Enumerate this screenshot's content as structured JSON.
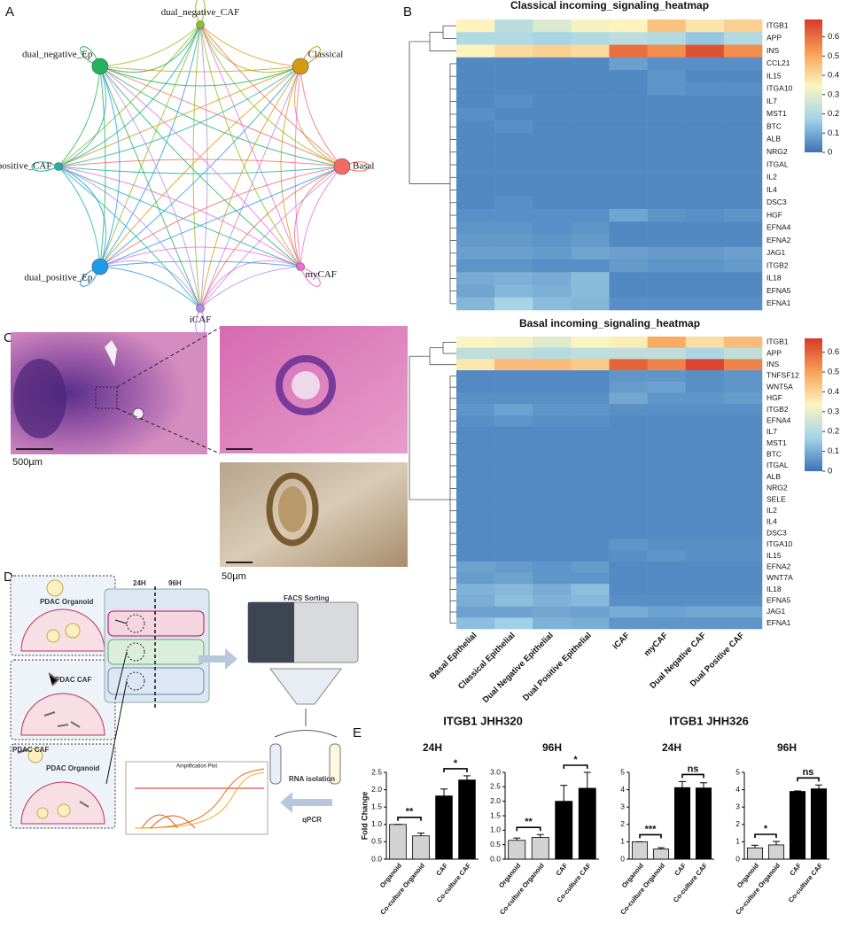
{
  "panel_labels": [
    "A",
    "B",
    "C",
    "D",
    "E"
  ],
  "network": {
    "nodes": [
      {
        "label": "dual_negative_CAF",
        "color": "#8fbf1f",
        "weight": 1
      },
      {
        "label": "Classical",
        "color": "#d49a12",
        "weight": 2
      },
      {
        "label": "Basal",
        "color": "#f26b63",
        "weight": 2
      },
      {
        "label": "myCAF",
        "color": "#f06be0",
        "weight": 1
      },
      {
        "label": "iCAF",
        "color": "#b98ae8",
        "weight": 1
      },
      {
        "label": "dual_positive_Ep",
        "color": "#1f9be8",
        "weight": 2
      },
      {
        "label": "dual_positive_CAF",
        "color": "#1fb0a8",
        "weight": 1
      },
      {
        "label": "dual_negative_Ep",
        "color": "#22b35e",
        "weight": 2
      }
    ]
  },
  "heatmap_columns": [
    "Basal Epithelial",
    "Classical Epithelial",
    "Dual Negative Epithelial",
    "Dual Positive Epithelial",
    "iCAF",
    "myCAF",
    "Dual Negative CAF",
    "Dual Positive CAF"
  ],
  "heatmaps": [
    {
      "title": "Classical incoming_signaling_heatmap",
      "rows": [
        "ITGB1",
        "APP",
        "INS",
        "CCL21",
        "IL15",
        "ITGA10",
        "IL7",
        "MST1",
        "BTC",
        "ALB",
        "NRG2",
        "ITGAL",
        "IL2",
        "IL4",
        "DSC3",
        "HGF",
        "EFNA4",
        "EFNA2",
        "JAG1",
        "ITGB2",
        "IL18",
        "EFNA5",
        "EFNA1"
      ],
      "values": [
        [
          0.35,
          0.22,
          0.28,
          0.33,
          0.35,
          0.45,
          0.38,
          0.42
        ],
        [
          0.2,
          0.2,
          0.18,
          0.2,
          0.22,
          0.2,
          0.15,
          0.2
        ],
        [
          0.35,
          0.4,
          0.42,
          0.4,
          0.6,
          0.55,
          0.65,
          0.55
        ],
        [
          0.04,
          0.04,
          0.04,
          0.04,
          0.08,
          0.05,
          0.05,
          0.05
        ],
        [
          0.04,
          0.04,
          0.04,
          0.04,
          0.04,
          0.06,
          0.04,
          0.04
        ],
        [
          0.04,
          0.04,
          0.04,
          0.04,
          0.04,
          0.06,
          0.05,
          0.05
        ],
        [
          0.04,
          0.05,
          0.04,
          0.04,
          0.04,
          0.04,
          0.04,
          0.04
        ],
        [
          0.05,
          0.04,
          0.04,
          0.04,
          0.04,
          0.04,
          0.04,
          0.04
        ],
        [
          0.04,
          0.05,
          0.04,
          0.04,
          0.04,
          0.04,
          0.04,
          0.04
        ],
        [
          0.04,
          0.04,
          0.04,
          0.04,
          0.04,
          0.04,
          0.04,
          0.04
        ],
        [
          0.04,
          0.04,
          0.04,
          0.04,
          0.04,
          0.04,
          0.04,
          0.04
        ],
        [
          0.04,
          0.04,
          0.04,
          0.04,
          0.04,
          0.04,
          0.04,
          0.04
        ],
        [
          0.04,
          0.04,
          0.04,
          0.04,
          0.04,
          0.04,
          0.04,
          0.04
        ],
        [
          0.04,
          0.04,
          0.04,
          0.04,
          0.04,
          0.04,
          0.04,
          0.04
        ],
        [
          0.04,
          0.05,
          0.04,
          0.04,
          0.04,
          0.04,
          0.04,
          0.04
        ],
        [
          0.05,
          0.05,
          0.05,
          0.05,
          0.09,
          0.06,
          0.05,
          0.06
        ],
        [
          0.06,
          0.06,
          0.05,
          0.06,
          0.04,
          0.04,
          0.04,
          0.04
        ],
        [
          0.07,
          0.07,
          0.06,
          0.07,
          0.04,
          0.04,
          0.04,
          0.04
        ],
        [
          0.08,
          0.08,
          0.07,
          0.09,
          0.08,
          0.07,
          0.07,
          0.08
        ],
        [
          0.06,
          0.06,
          0.05,
          0.05,
          0.07,
          0.06,
          0.06,
          0.07
        ],
        [
          0.1,
          0.11,
          0.1,
          0.13,
          0.04,
          0.04,
          0.04,
          0.04
        ],
        [
          0.09,
          0.12,
          0.11,
          0.13,
          0.04,
          0.04,
          0.04,
          0.04
        ],
        [
          0.12,
          0.18,
          0.13,
          0.12,
          0.05,
          0.05,
          0.05,
          0.05
        ]
      ],
      "lim": [
        0,
        0.69
      ],
      "ticks": [
        0,
        0.1,
        0.2,
        0.3,
        0.4,
        0.5,
        0.6
      ],
      "colormap": [
        "#3b72b8",
        "#a3d4e8",
        "#fcf5c0",
        "#f8a055",
        "#d63a2a"
      ]
    },
    {
      "title": "Basal incoming_signaling_heatmap",
      "rows": [
        "ITGB1",
        "APP",
        "INS",
        "TNFSF12",
        "WNT5A",
        "HGF",
        "ITGB2",
        "EFNA4",
        "IL7",
        "MST1",
        "BTC",
        "ITGAL",
        "ALB",
        "NRG2",
        "SELE",
        "IL2",
        "IL4",
        "DSC3",
        "ITGA10",
        "IL15",
        "EFNA2",
        "WNT7A",
        "IL18",
        "EFNA5",
        "JAG1",
        "EFNA1"
      ],
      "values": [
        [
          0.33,
          0.32,
          0.28,
          0.33,
          0.35,
          0.48,
          0.38,
          0.45
        ],
        [
          0.22,
          0.22,
          0.2,
          0.22,
          0.22,
          0.22,
          0.18,
          0.22
        ],
        [
          0.36,
          0.45,
          0.45,
          0.42,
          0.6,
          0.55,
          0.65,
          0.55
        ],
        [
          0.04,
          0.04,
          0.04,
          0.04,
          0.06,
          0.06,
          0.05,
          0.06
        ],
        [
          0.04,
          0.04,
          0.04,
          0.04,
          0.07,
          0.08,
          0.05,
          0.06
        ],
        [
          0.05,
          0.05,
          0.05,
          0.05,
          0.09,
          0.06,
          0.06,
          0.07
        ],
        [
          0.06,
          0.08,
          0.06,
          0.06,
          0.05,
          0.05,
          0.05,
          0.05
        ],
        [
          0.05,
          0.06,
          0.05,
          0.05,
          0.04,
          0.04,
          0.04,
          0.04
        ],
        [
          0.04,
          0.04,
          0.04,
          0.04,
          0.04,
          0.04,
          0.04,
          0.04
        ],
        [
          0.04,
          0.04,
          0.04,
          0.04,
          0.04,
          0.04,
          0.04,
          0.04
        ],
        [
          0.04,
          0.04,
          0.04,
          0.04,
          0.04,
          0.04,
          0.04,
          0.04
        ],
        [
          0.04,
          0.04,
          0.04,
          0.04,
          0.04,
          0.04,
          0.04,
          0.04
        ],
        [
          0.04,
          0.04,
          0.04,
          0.04,
          0.04,
          0.04,
          0.04,
          0.04
        ],
        [
          0.04,
          0.04,
          0.04,
          0.04,
          0.04,
          0.04,
          0.04,
          0.04
        ],
        [
          0.04,
          0.04,
          0.04,
          0.04,
          0.04,
          0.04,
          0.04,
          0.04
        ],
        [
          0.04,
          0.04,
          0.04,
          0.04,
          0.04,
          0.04,
          0.04,
          0.04
        ],
        [
          0.04,
          0.04,
          0.04,
          0.04,
          0.04,
          0.04,
          0.04,
          0.04
        ],
        [
          0.04,
          0.04,
          0.04,
          0.04,
          0.04,
          0.04,
          0.04,
          0.04
        ],
        [
          0.04,
          0.04,
          0.04,
          0.04,
          0.06,
          0.05,
          0.05,
          0.05
        ],
        [
          0.04,
          0.04,
          0.04,
          0.04,
          0.05,
          0.06,
          0.05,
          0.05
        ],
        [
          0.08,
          0.07,
          0.06,
          0.07,
          0.04,
          0.04,
          0.04,
          0.04
        ],
        [
          0.07,
          0.08,
          0.06,
          0.06,
          0.04,
          0.04,
          0.04,
          0.04
        ],
        [
          0.11,
          0.12,
          0.1,
          0.13,
          0.04,
          0.04,
          0.04,
          0.04
        ],
        [
          0.1,
          0.13,
          0.11,
          0.12,
          0.05,
          0.05,
          0.05,
          0.05
        ],
        [
          0.08,
          0.08,
          0.09,
          0.08,
          0.1,
          0.08,
          0.09,
          0.09
        ],
        [
          0.13,
          0.16,
          0.11,
          0.1,
          0.06,
          0.06,
          0.06,
          0.06
        ]
      ],
      "lim": [
        0,
        0.67
      ],
      "ticks": [
        0,
        0.1,
        0.2,
        0.3,
        0.4,
        0.5,
        0.6
      ],
      "colormap": [
        "#3b72b8",
        "#a3d4e8",
        "#fcf5c0",
        "#f8a055",
        "#d63a2a"
      ]
    }
  ],
  "histology": {
    "scale_bars": [
      "500µm",
      "50µm"
    ]
  },
  "workflow": {
    "time_points": [
      "24H",
      "96H"
    ],
    "boxes": [
      "PDAC Organoid",
      "PDAC CAF",
      "PDAC CAF",
      "PDAC Organoid"
    ],
    "facs": "FACS Sorting",
    "plot_title": "Amplification Plot",
    "rna": "RNA isolation",
    "qpcr": "qPCR"
  },
  "bar_chart_groups": [
    "ITGB1 JHH320",
    "ITGB1 JHH326"
  ],
  "chart_data": [
    {
      "type": "bar",
      "title": "24H",
      "ylabel": "Fold Change",
      "categories": [
        "Organoid",
        "Co-culture Organoid",
        "CAF",
        "Co-culture CAF"
      ],
      "values": [
        1.0,
        0.67,
        1.82,
        2.28
      ],
      "errors": [
        0,
        0.08,
        0.2,
        0.12
      ],
      "colors": [
        "#d3d3d3",
        "#d3d3d3",
        "#000000",
        "#000000"
      ],
      "annotations": [
        "**",
        "*"
      ],
      "ylim": [
        0,
        2.5
      ],
      "yticks": [
        {
          "value": 0,
          "label": "0.0"
        },
        0.5,
        {
          "value": 1,
          "label": "1.0"
        },
        1.5,
        {
          "value": 2,
          "label": "2.0"
        },
        2.5
      ]
    },
    {
      "type": "bar",
      "title": "96H",
      "categories": [
        "Organoid",
        "Co-culture Organoid",
        "CAF",
        "Co-culture CAF"
      ],
      "values": [
        0.65,
        0.75,
        2.0,
        2.45
      ],
      "errors": [
        0.08,
        0.1,
        0.55,
        0.55
      ],
      "colors": [
        "#d3d3d3",
        "#d3d3d3",
        "#000000",
        "#000000"
      ],
      "annotations": [
        "**",
        "*"
      ],
      "ylim": [
        0,
        3
      ],
      "yticks": [
        {
          "value": 0,
          "label": "0.0"
        },
        0.5,
        {
          "value": 1,
          "label": "1.0"
        },
        1.5,
        {
          "value": 2,
          "label": "2.0"
        },
        2.5,
        {
          "value": 3,
          "label": "3.0"
        }
      ]
    },
    {
      "type": "bar",
      "title": "24H",
      "categories": [
        "Organoid",
        "Co-culture Organoid",
        "CAF",
        "Co-culture CAF"
      ],
      "values": [
        1.0,
        0.58,
        4.12,
        4.1
      ],
      "errors": [
        0,
        0.08,
        0.35,
        0.3
      ],
      "colors": [
        "#d3d3d3",
        "#d3d3d3",
        "#000000",
        "#000000"
      ],
      "annotations": [
        "***",
        "ns"
      ],
      "ylim": [
        0,
        5
      ],
      "yticks": [
        0,
        1,
        2,
        3,
        4,
        5
      ]
    },
    {
      "type": "bar",
      "title": "96H",
      "categories": [
        "Organoid",
        "Co-culture Organoid",
        "CAF",
        "Co-culture CAF"
      ],
      "values": [
        0.65,
        0.82,
        3.9,
        4.05
      ],
      "errors": [
        0.15,
        0.2,
        0.03,
        0.22
      ],
      "colors": [
        "#d3d3d3",
        "#d3d3d3",
        "#000000",
        "#000000"
      ],
      "annotations": [
        "*",
        "ns"
      ],
      "ylim": [
        0,
        5
      ],
      "yticks": [
        0,
        1,
        2,
        3,
        4,
        5
      ]
    }
  ]
}
